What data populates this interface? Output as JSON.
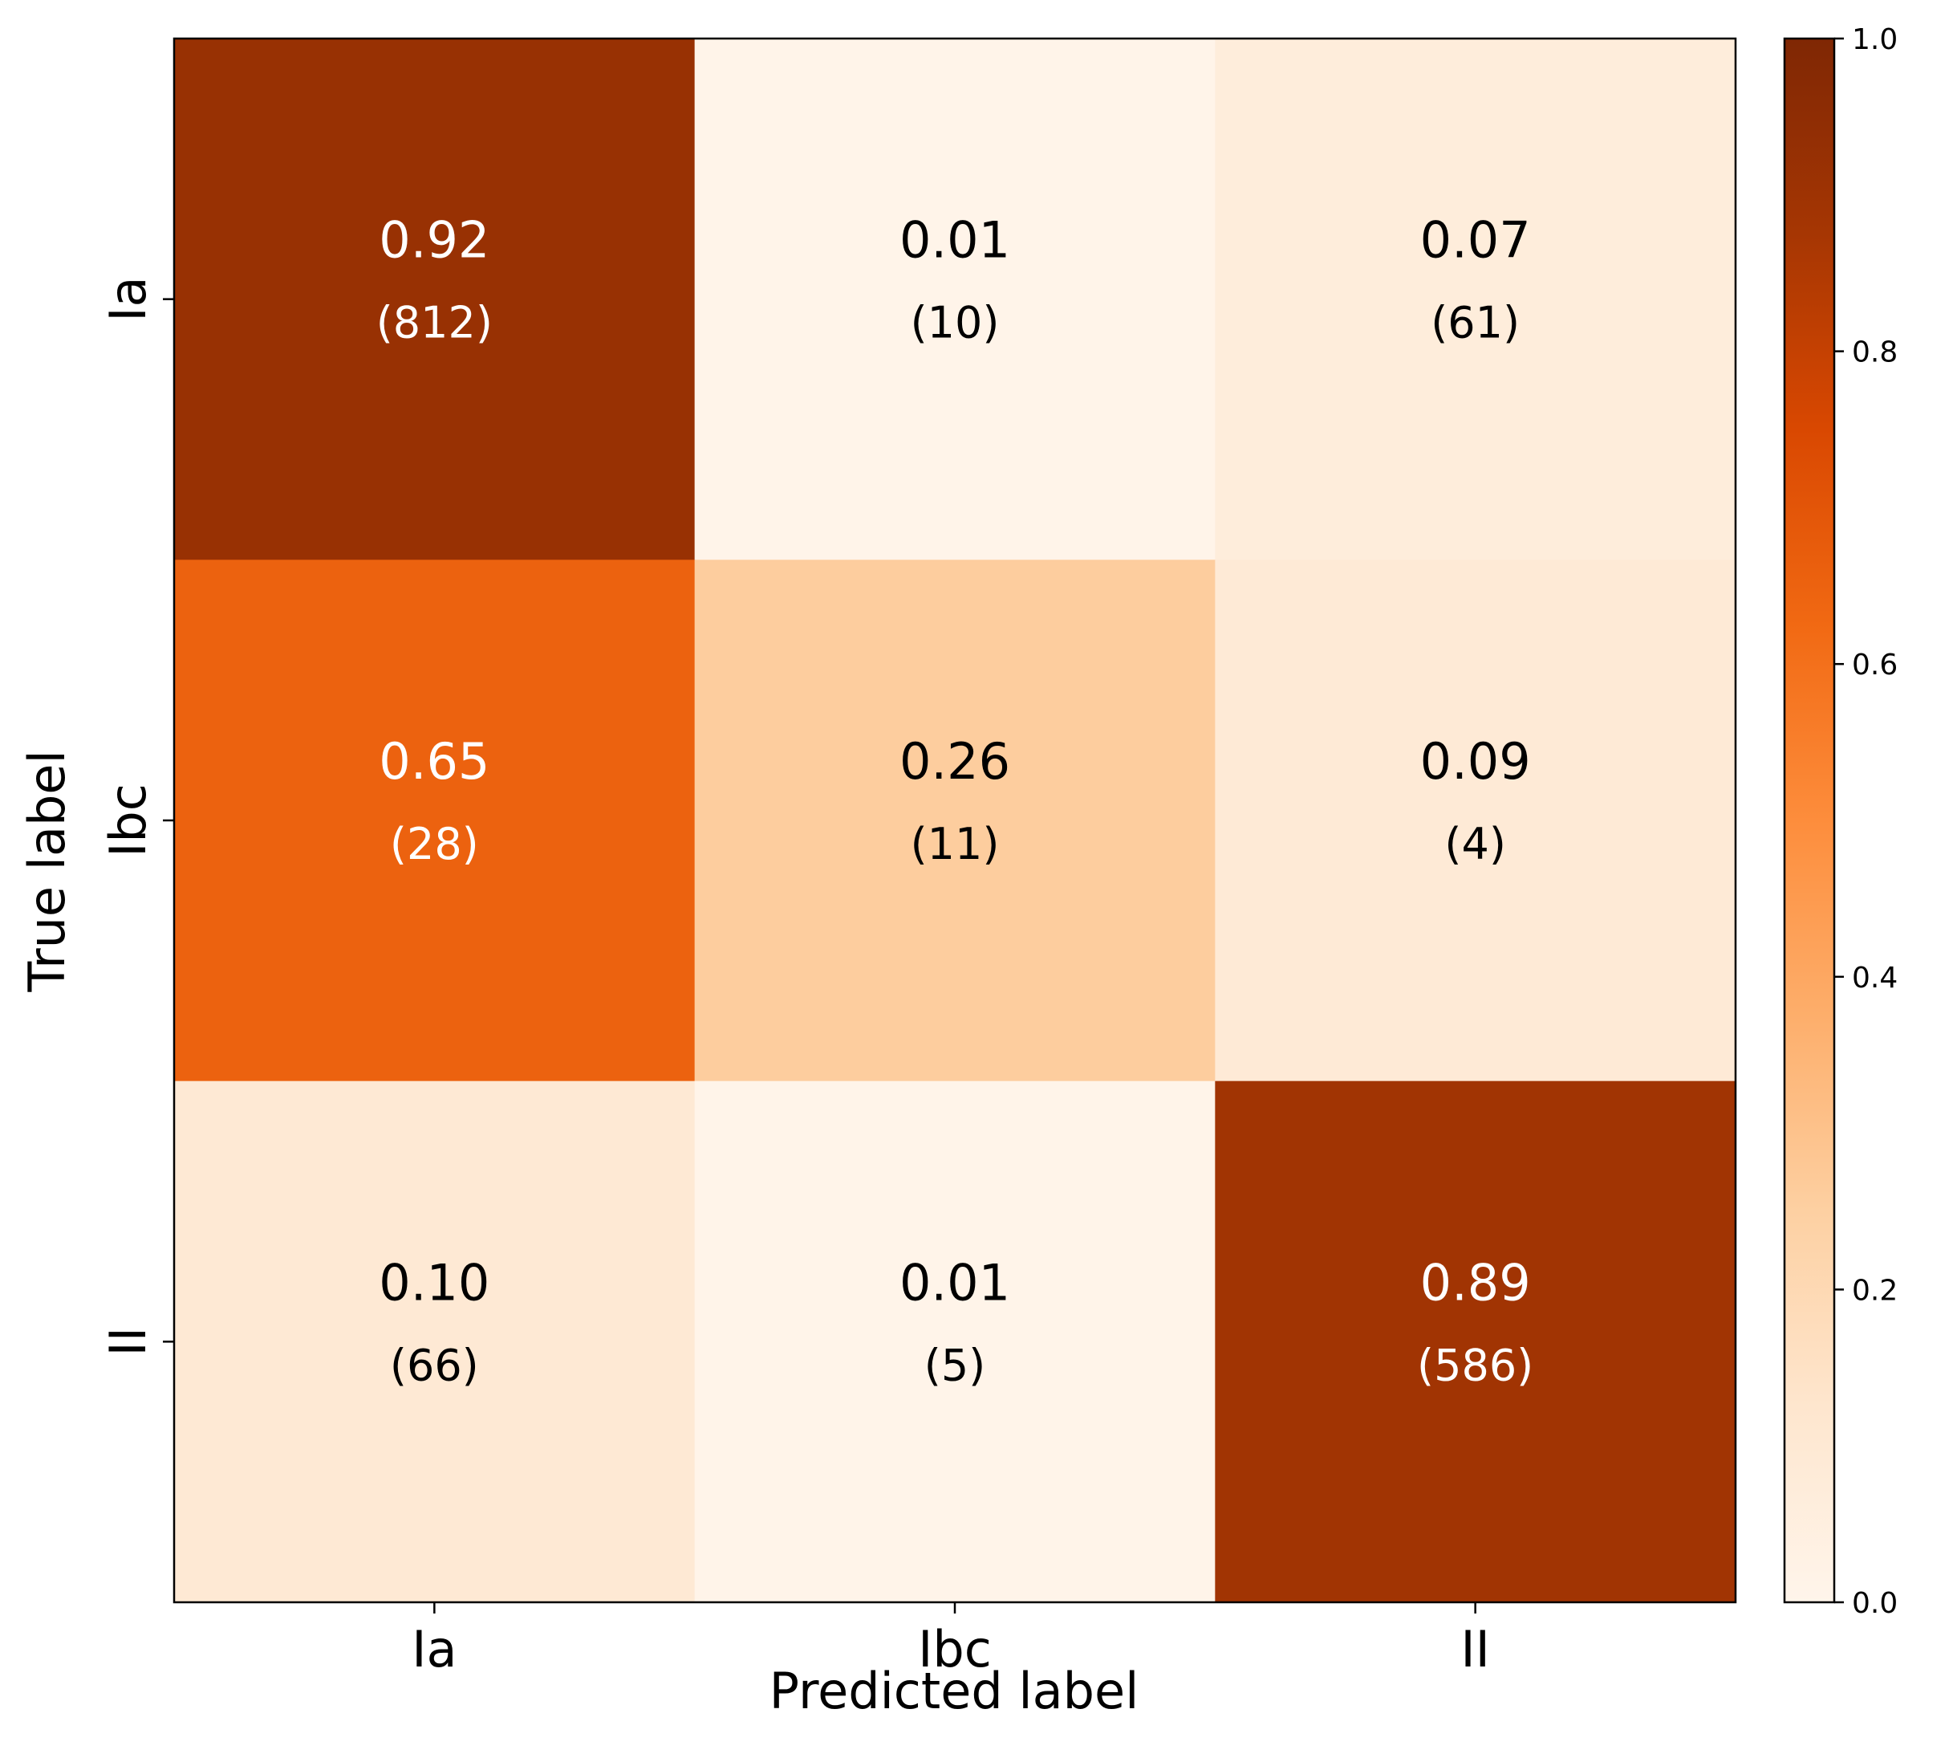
{
  "chart_data": {
    "type": "heatmap",
    "title": "",
    "xlabel": "Predicted label",
    "ylabel": "True label",
    "x_categories": [
      "Ia",
      "Ibc",
      "II"
    ],
    "y_categories": [
      "Ia",
      "Ibc",
      "II"
    ],
    "values": [
      [
        0.92,
        0.01,
        0.07
      ],
      [
        0.65,
        0.26,
        0.09
      ],
      [
        0.1,
        0.01,
        0.89
      ]
    ],
    "value_labels": [
      [
        "0.92",
        "0.01",
        "0.07"
      ],
      [
        "0.65",
        "0.26",
        "0.09"
      ],
      [
        "0.10",
        "0.01",
        "0.89"
      ]
    ],
    "count_labels": [
      [
        "(812)",
        "(10)",
        "(61)"
      ],
      [
        "(28)",
        "(11)",
        "(4)"
      ],
      [
        "(66)",
        "(5)",
        "(586)"
      ]
    ],
    "colormap": "Oranges",
    "colorbar": {
      "range": [
        0.0,
        1.0
      ],
      "ticks": [
        0.0,
        0.2,
        0.4,
        0.6,
        0.8,
        1.0
      ],
      "tick_labels": [
        "0.0",
        "0.2",
        "0.4",
        "0.6",
        "0.8",
        "1.0"
      ]
    }
  }
}
